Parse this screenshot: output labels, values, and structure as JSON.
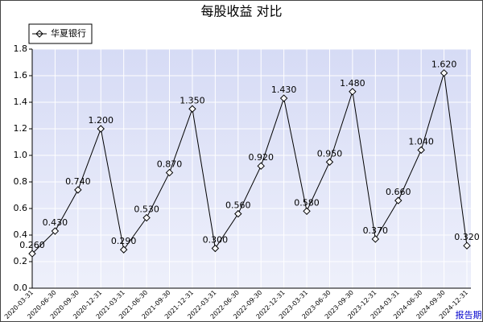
{
  "chart_data": {
    "type": "line",
    "title": "每股收益  对比",
    "x_label": "报告期",
    "categories": [
      "2020-03-31",
      "2020-06-30",
      "2020-09-30",
      "2020-12-31",
      "2021-03-31",
      "2021-06-30",
      "2021-09-30",
      "2021-12-31",
      "2022-03-31",
      "2022-06-30",
      "2022-09-30",
      "2022-12-31",
      "2023-03-31",
      "2023-06-30",
      "2023-09-30",
      "2023-12-31",
      "2024-03-31",
      "2024-06-30",
      "2024-09-30",
      "2024-12-31"
    ],
    "series": [
      {
        "name": "华夏银行",
        "color": "#000000",
        "values": [
          0.26,
          0.43,
          0.74,
          1.2,
          0.29,
          0.53,
          0.87,
          1.35,
          0.3,
          0.56,
          0.92,
          1.43,
          0.58,
          0.95,
          1.48,
          0.37,
          0.66,
          1.04,
          1.62,
          0.32
        ],
        "value_labels": [
          "0.260",
          "0.430",
          "0.740",
          "1.200",
          "0.290",
          "0.530",
          "0.870",
          "1.350",
          "0.300",
          "0.560",
          "0.920",
          "1.430",
          "0.580",
          "0.950",
          "1.480",
          "0.370",
          "0.660",
          "1.040",
          "1.620",
          "0.320"
        ]
      }
    ],
    "ylim": [
      0,
      1.8
    ],
    "yticks": [
      {
        "value": 0,
        "label": "0.0"
      },
      0.2,
      0.4,
      0.6,
      0.8,
      {
        "value": 1,
        "label": "1.0"
      },
      1.2,
      1.4,
      1.6,
      1.8
    ],
    "grid": true,
    "legend": "top-left"
  }
}
